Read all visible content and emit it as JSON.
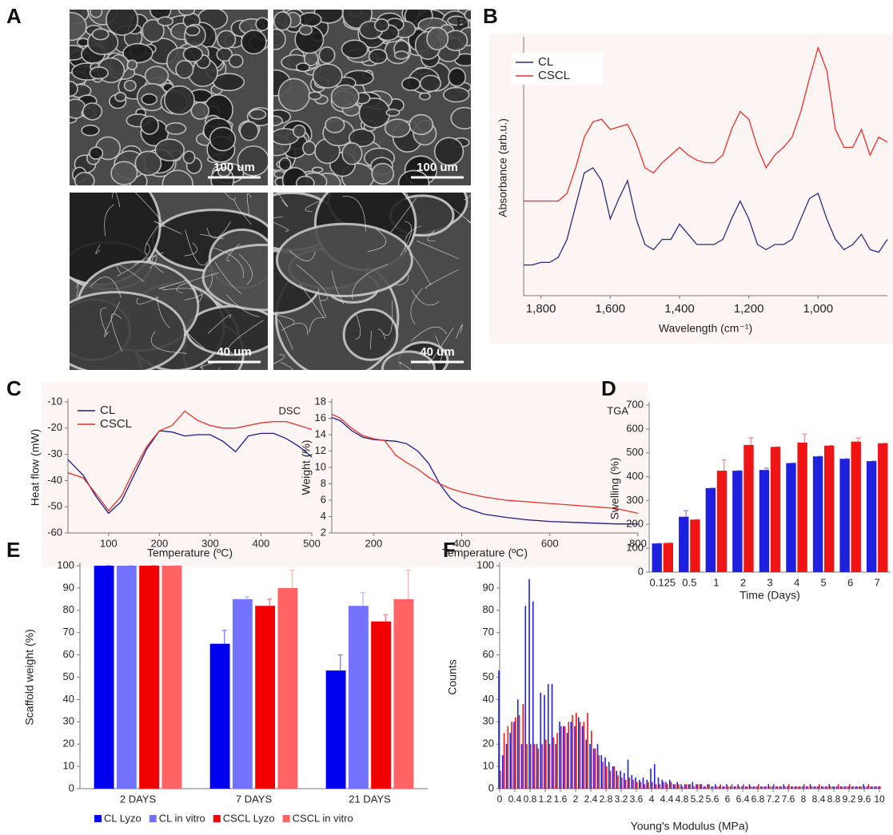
{
  "panel_labels": [
    "A",
    "B",
    "C",
    "D",
    "E",
    "F"
  ],
  "sem_images": [
    {
      "scale_bar": "100 um"
    },
    {
      "scale_bar": "100 um",
      "corner_text": "B"
    },
    {
      "scale_bar": "40 um"
    },
    {
      "scale_bar": "40 um"
    }
  ],
  "chart_data": [
    {
      "type": "line",
      "xlabel": "Wavelength (cm⁻¹)",
      "ylabel": "Absorbance (arb.u.)",
      "legend": "upper left",
      "x": [
        1850,
        1825,
        1800,
        1775,
        1750,
        1725,
        1700,
        1675,
        1650,
        1625,
        1600,
        1575,
        1550,
        1525,
        1500,
        1475,
        1450,
        1425,
        1400,
        1375,
        1350,
        1325,
        1300,
        1275,
        1250,
        1225,
        1200,
        1175,
        1150,
        1125,
        1100,
        1075,
        1050,
        1025,
        1000,
        975,
        950,
        925,
        900,
        875,
        850,
        825,
        800
      ],
      "xlim": [
        1850,
        800
      ],
      "ylim": [
        0,
        100
      ],
      "xticks": [
        {
          "value": 1800,
          "label": "1,800"
        },
        {
          "value": 1600,
          "label": "1,600"
        },
        {
          "value": 1400,
          "label": "1,400"
        },
        {
          "value": 1200,
          "label": "1,200"
        },
        {
          "value": 1000,
          "label": "1,000"
        }
      ],
      "series": [
        {
          "name": "CL",
          "color": "#2b2b7d",
          "values": [
            12,
            12,
            13,
            13,
            15,
            22,
            35,
            48,
            50,
            45,
            30,
            38,
            45,
            30,
            20,
            18,
            22,
            22,
            28,
            24,
            20,
            20,
            20,
            22,
            30,
            37,
            30,
            20,
            18,
            20,
            20,
            22,
            30,
            38,
            40,
            30,
            22,
            18,
            20,
            24,
            18,
            17,
            22
          ]
        },
        {
          "name": "CSCL",
          "color": "#e8302a",
          "values": [
            37,
            37,
            37,
            37,
            37,
            40,
            50,
            62,
            68,
            69,
            65,
            66,
            67,
            60,
            50,
            48,
            52,
            55,
            58,
            55,
            53,
            52,
            52,
            55,
            65,
            72,
            69,
            58,
            50,
            55,
            58,
            62,
            72,
            85,
            97,
            88,
            65,
            58,
            58,
            65,
            55,
            62,
            60
          ]
        }
      ]
    },
    {
      "type": "line",
      "xlabel": "Temperature (ºC)",
      "ylabel": "Heat flow (mW)",
      "annotation": "DSC",
      "legend": "upper left",
      "x": [
        20,
        50,
        75,
        100,
        125,
        150,
        175,
        200,
        225,
        250,
        275,
        300,
        325,
        350,
        375,
        400,
        425,
        450,
        475,
        500
      ],
      "xlim": [
        20,
        500
      ],
      "ylim": [
        -60,
        -10
      ],
      "xticks": [
        100,
        200,
        300,
        400,
        500
      ],
      "yticks": [
        -60,
        -50,
        -40,
        -30,
        -20,
        -10
      ],
      "series": [
        {
          "name": "CL",
          "color": "#1c1c8a",
          "values": [
            -32,
            -38,
            -46,
            -52.5,
            -48,
            -38,
            -28,
            -21,
            -21.5,
            -23,
            -22.5,
            -22.5,
            -25,
            -29,
            -23,
            -22,
            -22,
            -24,
            -27,
            -31
          ]
        },
        {
          "name": "CSCL",
          "color": "#e8302a",
          "values": [
            -37,
            -39,
            -45,
            -51.5,
            -46,
            -36,
            -27,
            -21,
            -19,
            -13.5,
            -17,
            -19,
            -20,
            -20,
            -19,
            -18,
            -17.5,
            -17.5,
            -19,
            -20.5
          ]
        }
      ]
    },
    {
      "type": "line",
      "xlabel": "Temperature (ºC)",
      "ylabel": "Weight (%)",
      "annotation": "TGA",
      "x": [
        105,
        125,
        150,
        175,
        200,
        225,
        250,
        275,
        300,
        325,
        350,
        375,
        400,
        450,
        500,
        550,
        600,
        650,
        700,
        750,
        800
      ],
      "xlim": [
        105,
        800
      ],
      "ylim": [
        2,
        18
      ],
      "xticks": [
        200,
        400,
        600,
        800
      ],
      "yticks": [
        2,
        4,
        6,
        8,
        10,
        12,
        14,
        16,
        18
      ],
      "series": [
        {
          "color": "#1c1c8a",
          "values": [
            16.1,
            15.7,
            14.5,
            13.7,
            13.4,
            13.3,
            13.2,
            12.9,
            12,
            10.5,
            8,
            6.2,
            5.2,
            4.3,
            3.9,
            3.6,
            3.4,
            3.3,
            3.2,
            3.1,
            3.1
          ]
        },
        {
          "color": "#e8302a",
          "values": [
            16.5,
            16.0,
            14.8,
            13.9,
            13.5,
            13.3,
            11.5,
            10.6,
            9.8,
            8.8,
            8,
            7.4,
            7,
            6.4,
            6,
            5.8,
            5.6,
            5.4,
            5.2,
            5.0,
            4.4
          ]
        }
      ]
    },
    {
      "type": "bar",
      "xlabel": "Time (Days)",
      "ylabel": "Swelling (%)",
      "categories": [
        "0.125",
        "0.5",
        "1",
        "2",
        "3",
        "4",
        "5",
        "6",
        "7"
      ],
      "ylim": [
        0,
        700
      ],
      "yticks": [
        0,
        100,
        200,
        300,
        400,
        500,
        600,
        700
      ],
      "series": [
        {
          "color": "#1f1fe0",
          "values": [
            120,
            232,
            352,
            425,
            428,
            457,
            485,
            475,
            465
          ],
          "errors": [
            0,
            25,
            0,
            0,
            8,
            0,
            0,
            0,
            0
          ]
        },
        {
          "color": "#f01414",
          "values": [
            122,
            220,
            425,
            533,
            525,
            543,
            530,
            547,
            540
          ],
          "errors": [
            0,
            0,
            45,
            30,
            0,
            35,
            0,
            15,
            0
          ]
        }
      ]
    },
    {
      "type": "bar",
      "ylabel": "Scaffold weight (%)",
      "legend": "bottom",
      "categories": [
        "2 DAYS",
        "7 DAYS",
        "21 DAYS"
      ],
      "ylim": [
        0,
        100
      ],
      "yticks": [
        0,
        10,
        20,
        30,
        40,
        50,
        60,
        70,
        80,
        90,
        100
      ],
      "series": [
        {
          "name": "CL Lyzo",
          "color": "#0000f0",
          "values": [
            100,
            65,
            53
          ],
          "errors": [
            0,
            6,
            7
          ]
        },
        {
          "name": "CL in vitro",
          "color": "#7373ff",
          "values": [
            100,
            85,
            82
          ],
          "errors": [
            0,
            1,
            6
          ]
        },
        {
          "name": "CSCL Lyzo",
          "color": "#f00000",
          "values": [
            100,
            82,
            75
          ],
          "errors": [
            0,
            3,
            3
          ]
        },
        {
          "name": "CSCL in vitro",
          "color": "#ff6464",
          "values": [
            100,
            90,
            85
          ],
          "errors": [
            0,
            8,
            13
          ]
        }
      ]
    },
    {
      "type": "bar",
      "xlabel": "Young's Modulus (MPa)",
      "ylabel": "Counts",
      "x": [
        0,
        0.1,
        0.2,
        0.3,
        0.4,
        0.5,
        0.6,
        0.7,
        0.8,
        0.9,
        1,
        1.1,
        1.2,
        1.3,
        1.4,
        1.5,
        1.6,
        1.7,
        1.8,
        1.9,
        2,
        2.1,
        2.2,
        2.3,
        2.4,
        2.5,
        2.6,
        2.7,
        2.8,
        2.9,
        3,
        3.1,
        3.2,
        3.3,
        3.4,
        3.5,
        3.6,
        3.7,
        3.8,
        3.9,
        4,
        4.1,
        4.2,
        4.3,
        4.4,
        4.5,
        4.6,
        4.7,
        4.8,
        4.9,
        5,
        5.1,
        5.2,
        5.3,
        5.4,
        5.5,
        5.6,
        5.7,
        5.8,
        5.9,
        6,
        6.1,
        6.2,
        6.3,
        6.4,
        6.5,
        6.6,
        6.7,
        6.8,
        6.9,
        7,
        7.1,
        7.2,
        7.3,
        7.4,
        7.5,
        7.6,
        7.7,
        7.8,
        7.9,
        8,
        8.1,
        8.2,
        8.3,
        8.4,
        8.5,
        8.6,
        8.7,
        8.8,
        8.9,
        9,
        9.1,
        9.2,
        9.3,
        9.4,
        9.5,
        9.6,
        9.7,
        9.8,
        9.9,
        10
      ],
      "xlim": [
        0,
        10
      ],
      "ylim": [
        0,
        100
      ],
      "xticks": [
        0,
        0.4,
        0.8,
        1.2,
        1.6,
        2,
        2.4,
        2.8,
        3.2,
        3.6,
        4,
        4.4,
        4.8,
        5.2,
        5.6,
        6,
        6.4,
        6.8,
        7.2,
        7.6,
        8,
        8.4,
        8.8,
        9.2,
        9.6,
        10
      ],
      "yticks": [
        0,
        10,
        20,
        30,
        40,
        50,
        60,
        70,
        80,
        90,
        100
      ],
      "series": [
        {
          "color": "#1f1fe0",
          "values": [
            53,
            15,
            20,
            25,
            30,
            40,
            20,
            82,
            94,
            84,
            20,
            43,
            42,
            47,
            47,
            20,
            30,
            28,
            25,
            30,
            28,
            32,
            28,
            22,
            20,
            18,
            20,
            15,
            14,
            12,
            10,
            8,
            8,
            7,
            13,
            6,
            5,
            4,
            5,
            4,
            9,
            11,
            5,
            4,
            3,
            4,
            2,
            3,
            2,
            2,
            2,
            3,
            2,
            2,
            1,
            2,
            1,
            2,
            1,
            1,
            2,
            1,
            1,
            2,
            1,
            1,
            2,
            1,
            1,
            1,
            1,
            2,
            1,
            1,
            1,
            2,
            1,
            1,
            1,
            1,
            1,
            1,
            2,
            1,
            1,
            1,
            1,
            2,
            1,
            1,
            1,
            1,
            1,
            1,
            1,
            1,
            2,
            1,
            1,
            1,
            1
          ]
        },
        {
          "color": "#f01414",
          "values": [
            8,
            25,
            28,
            30,
            32,
            33,
            38,
            20,
            20,
            20,
            18,
            20,
            22,
            20,
            23,
            25,
            28,
            28,
            30,
            33,
            34,
            30,
            30,
            34,
            26,
            18,
            15,
            12,
            10,
            8,
            10,
            6,
            5,
            4,
            5,
            4,
            3,
            3,
            2,
            3,
            3,
            2,
            2,
            3,
            2,
            3,
            2,
            2,
            1,
            2,
            2,
            1,
            2,
            2,
            1,
            2,
            1,
            1,
            2,
            1,
            1,
            2,
            1,
            1,
            2,
            1,
            1,
            1,
            2,
            1,
            1,
            1,
            2,
            1,
            1,
            1,
            2,
            1,
            1,
            1,
            2,
            1,
            1,
            1,
            2,
            1,
            1,
            1,
            1,
            2,
            1,
            1,
            2,
            1,
            1,
            1,
            1,
            2,
            1,
            1,
            1
          ]
        }
      ]
    }
  ]
}
